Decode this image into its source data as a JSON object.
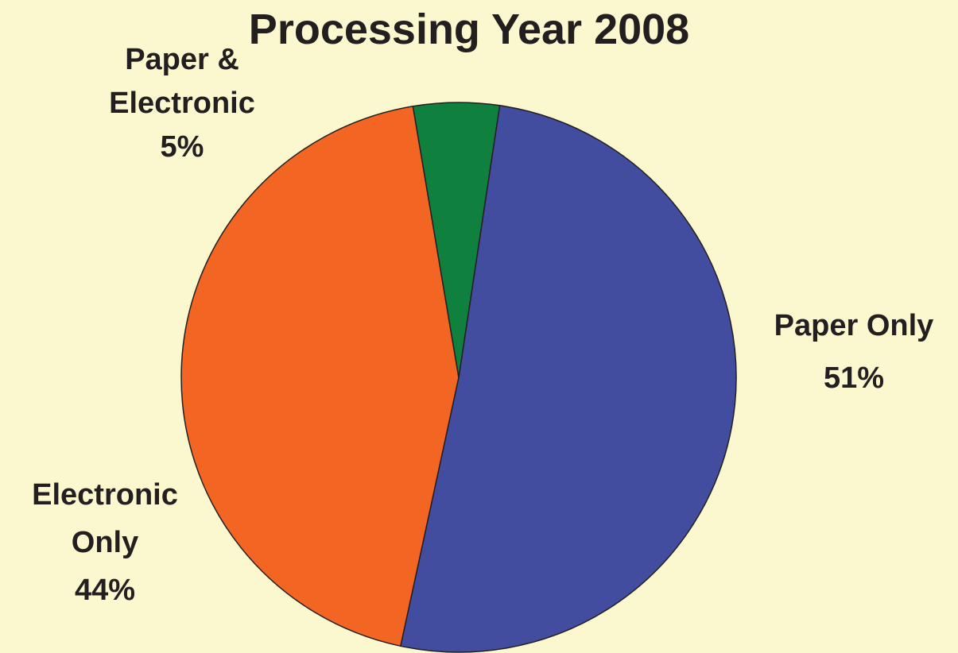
{
  "chart_data": {
    "type": "pie",
    "title": "Processing Year 2008",
    "slices": [
      {
        "name": "Paper Only",
        "value": 51,
        "color": "#434da0",
        "label_lines": [
          "Paper Only",
          "51%"
        ]
      },
      {
        "name": "Electronic Only",
        "value": 44,
        "color": "#f26522",
        "label_lines": [
          "Electronic",
          "Only",
          "44%"
        ]
      },
      {
        "name": "Paper & Electronic",
        "value": 5,
        "color": "#10803f",
        "label_lines": [
          "Paper &",
          "Electronic",
          "5%"
        ]
      }
    ],
    "background_color": "#fbf8cf"
  }
}
